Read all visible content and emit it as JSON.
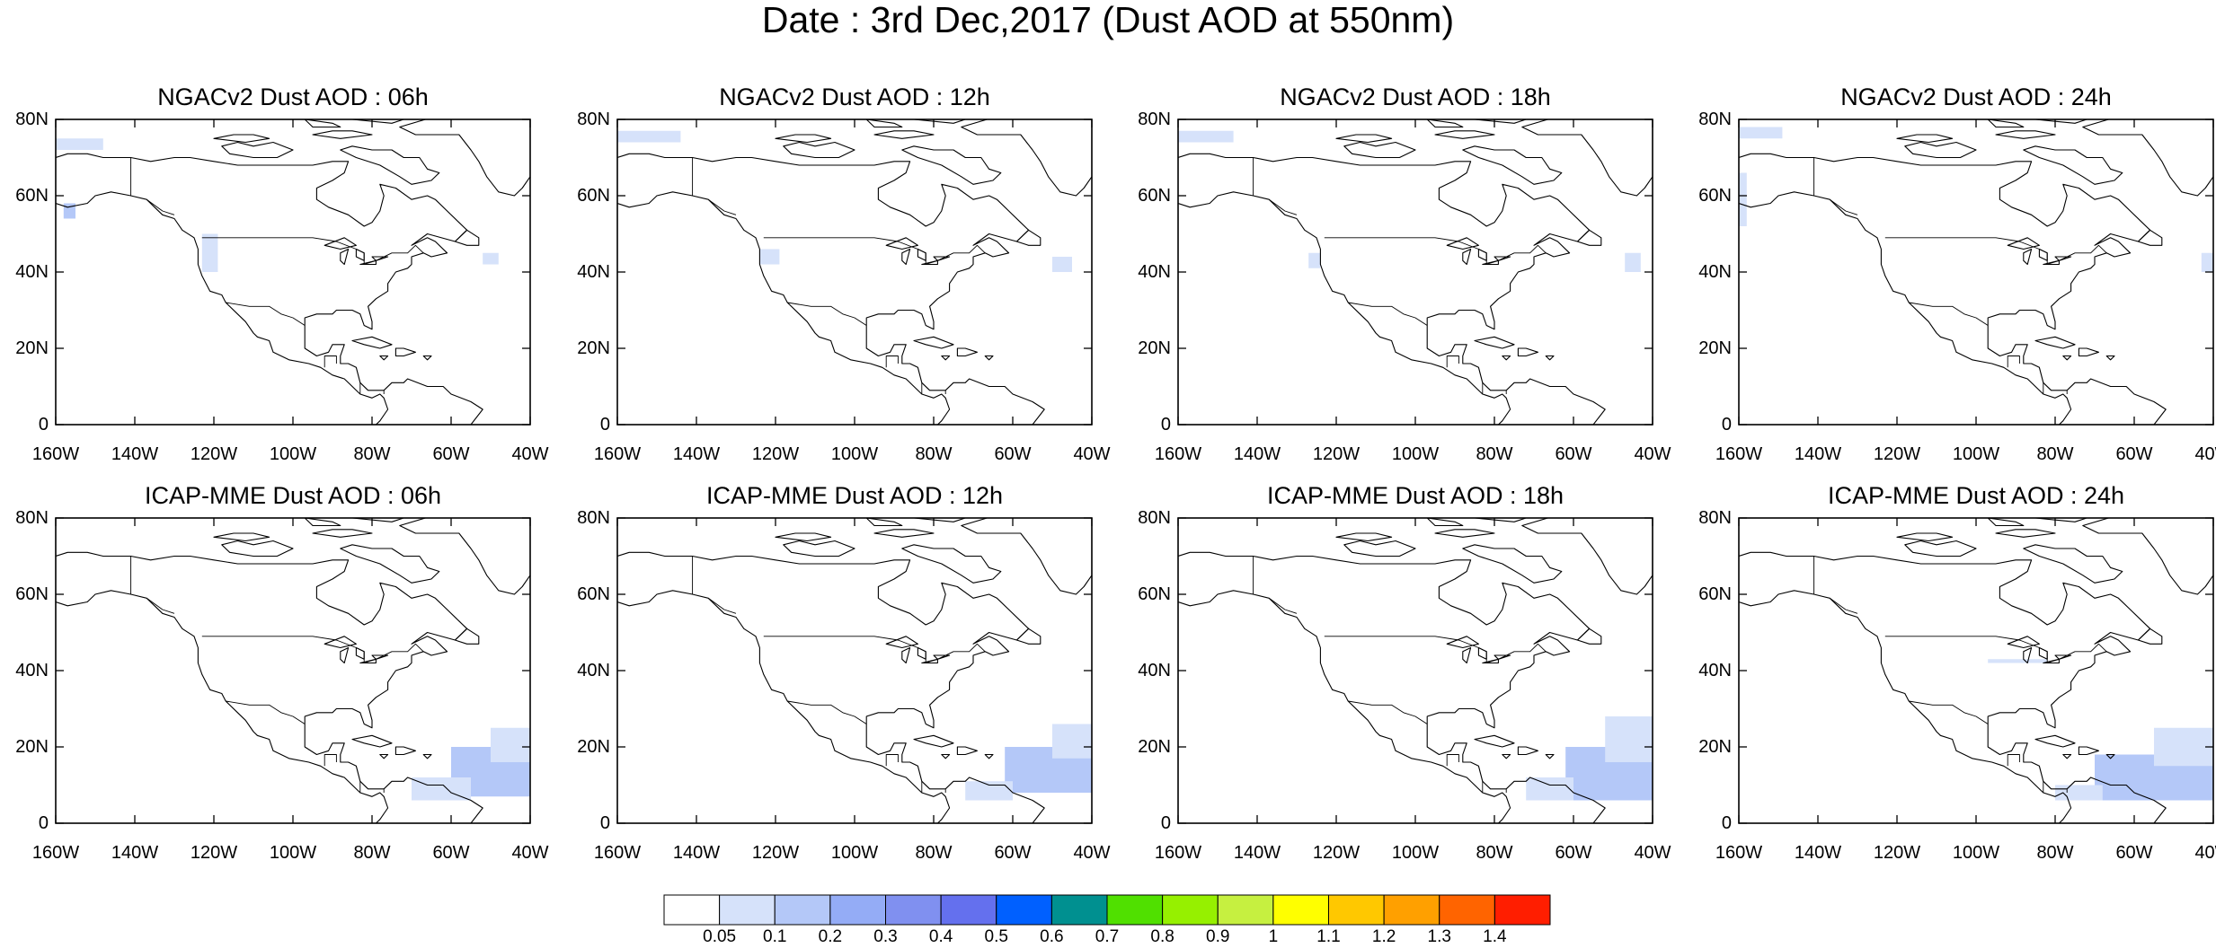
{
  "figure": {
    "title": "Date : 3rd Dec,2017 (Dust AOD at 550nm)"
  },
  "lat_tick_labels": [
    "80N",
    "60N",
    "40N",
    "20N",
    "0"
  ],
  "lon_tick_labels": [
    "160W",
    "140W",
    "120W",
    "100W",
    "80W",
    "60W",
    "40W"
  ],
  "map_extent": {
    "lon_range": [
      -160,
      -40
    ],
    "lat_range": [
      0,
      80
    ],
    "basemap": "North America coastlines and country borders"
  },
  "panels": [
    {
      "title": "NGACv2 Dust AOD : 06h",
      "dust_patches": [
        {
          "lon": [
            -160,
            -148
          ],
          "lat": [
            72,
            75
          ],
          "aod_class": "0.05-0.1"
        },
        {
          "lon": [
            -158,
            -155
          ],
          "lat": [
            54,
            58
          ],
          "aod_class": "0.1-0.2"
        },
        {
          "lon": [
            -123,
            -119
          ],
          "lat": [
            40,
            50
          ],
          "aod_class": "0.05-0.1"
        },
        {
          "lon": [
            -52,
            -48
          ],
          "lat": [
            42,
            45
          ],
          "aod_class": "0.05-0.1"
        }
      ]
    },
    {
      "title": "NGACv2 Dust AOD : 12h",
      "dust_patches": [
        {
          "lon": [
            -160,
            -144
          ],
          "lat": [
            74,
            77
          ],
          "aod_class": "0.05-0.1"
        },
        {
          "lon": [
            -124,
            -119
          ],
          "lat": [
            42,
            46
          ],
          "aod_class": "0.05-0.1"
        },
        {
          "lon": [
            -50,
            -45
          ],
          "lat": [
            40,
            44
          ],
          "aod_class": "0.05-0.1"
        }
      ]
    },
    {
      "title": "NGACv2 Dust AOD : 18h",
      "dust_patches": [
        {
          "lon": [
            -160,
            -146
          ],
          "lat": [
            74,
            77
          ],
          "aod_class": "0.05-0.1"
        },
        {
          "lon": [
            -127,
            -124
          ],
          "lat": [
            41,
            45
          ],
          "aod_class": "0.05-0.1"
        },
        {
          "lon": [
            -47,
            -43
          ],
          "lat": [
            40,
            45
          ],
          "aod_class": "0.05-0.1"
        }
      ]
    },
    {
      "title": "NGACv2 Dust AOD : 24h",
      "dust_patches": [
        {
          "lon": [
            -160,
            -149
          ],
          "lat": [
            75,
            78
          ],
          "aod_class": "0.05-0.1"
        },
        {
          "lon": [
            -160,
            -158
          ],
          "lat": [
            52,
            66
          ],
          "aod_class": "0.05-0.1"
        },
        {
          "lon": [
            -43,
            -40
          ],
          "lat": [
            40,
            45
          ],
          "aod_class": "0.05-0.1"
        }
      ]
    },
    {
      "title": "ICAP-MME Dust AOD : 06h",
      "dust_patches": [
        {
          "lon": [
            -60,
            -40
          ],
          "lat": [
            7,
            20
          ],
          "aod_class": "0.1-0.2"
        },
        {
          "lon": [
            -50,
            -40
          ],
          "lat": [
            16,
            25
          ],
          "aod_class": "0.05-0.1"
        },
        {
          "lon": [
            -70,
            -55
          ],
          "lat": [
            6,
            12
          ],
          "aod_class": "0.05-0.1"
        }
      ]
    },
    {
      "title": "ICAP-MME Dust AOD : 12h",
      "dust_patches": [
        {
          "lon": [
            -62,
            -40
          ],
          "lat": [
            8,
            20
          ],
          "aod_class": "0.1-0.2"
        },
        {
          "lon": [
            -50,
            -40
          ],
          "lat": [
            17,
            26
          ],
          "aod_class": "0.05-0.1"
        },
        {
          "lon": [
            -72,
            -60
          ],
          "lat": [
            6,
            11
          ],
          "aod_class": "0.05-0.1"
        }
      ]
    },
    {
      "title": "ICAP-MME Dust AOD : 18h",
      "dust_patches": [
        {
          "lon": [
            -62,
            -40
          ],
          "lat": [
            6,
            20
          ],
          "aod_class": "0.1-0.2"
        },
        {
          "lon": [
            -52,
            -40
          ],
          "lat": [
            16,
            28
          ],
          "aod_class": "0.05-0.1"
        },
        {
          "lon": [
            -72,
            -60
          ],
          "lat": [
            6,
            12
          ],
          "aod_class": "0.05-0.1"
        }
      ]
    },
    {
      "title": "ICAP-MME Dust AOD : 24h",
      "dust_patches": [
        {
          "lon": [
            -70,
            -40
          ],
          "lat": [
            6,
            18
          ],
          "aod_class": "0.1-0.2"
        },
        {
          "lon": [
            -55,
            -40
          ],
          "lat": [
            15,
            25
          ],
          "aod_class": "0.05-0.1"
        },
        {
          "lon": [
            -80,
            -68
          ],
          "lat": [
            6,
            10
          ],
          "aod_class": "0.05-0.1"
        },
        {
          "lon": [
            -97,
            -82
          ],
          "lat": [
            42,
            43
          ],
          "aod_class": "0.05-0.1"
        }
      ]
    }
  ],
  "colorbar": {
    "labels": [
      "0.05",
      "0.1",
      "0.2",
      "0.3",
      "0.4",
      "0.5",
      "0.6",
      "0.7",
      "0.8",
      "0.9",
      "1",
      "1.1",
      "1.2",
      "1.3",
      "1.4"
    ],
    "colors": [
      "#ffffff",
      "#d6e2fa",
      "#b4c8f8",
      "#94acf6",
      "#8090f0",
      "#6470ee",
      "#0060ff",
      "#009090",
      "#50e000",
      "#96f000",
      "#c6f040",
      "#ffff00",
      "#ffc800",
      "#ffa000",
      "#ff6400",
      "#ff1e00"
    ]
  },
  "aod_class_colors": {
    "0.05-0.1": "#d6e2fa",
    "0.1-0.2": "#b4c8f8"
  }
}
